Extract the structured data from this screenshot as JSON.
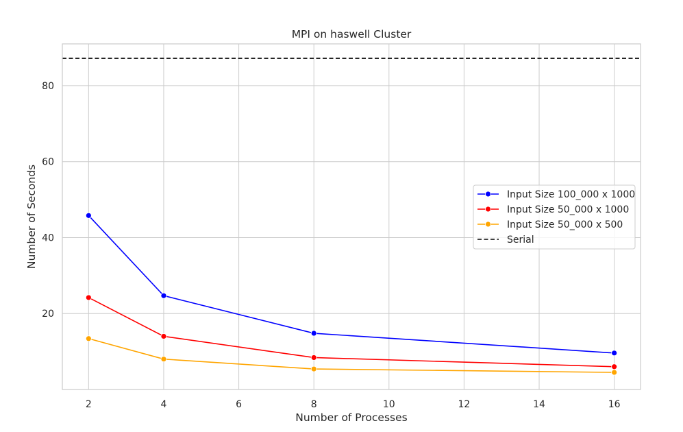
{
  "chart_data": {
    "type": "line",
    "title": "MPI on haswell Cluster",
    "xlabel": "Number of Processes",
    "ylabel": "Number of Seconds",
    "xlim": [
      1.3,
      16.7
    ],
    "ylim": [
      0,
      91
    ],
    "xticks": [
      2,
      4,
      6,
      8,
      10,
      12,
      14,
      16
    ],
    "yticks": [
      20,
      40,
      60,
      80
    ],
    "grid": true,
    "legend_position": "center-right",
    "x": [
      2,
      4,
      8,
      16
    ],
    "series": [
      {
        "name": "Input Size 100_000 x 1000",
        "color": "#0000ff",
        "marker": "circle",
        "values": [
          45.8,
          24.7,
          14.8,
          9.6
        ]
      },
      {
        "name": "Input Size 50_000 x 1000",
        "color": "#ff0000",
        "marker": "circle",
        "values": [
          24.2,
          14.0,
          8.4,
          6.0
        ]
      },
      {
        "name": "Input Size 50_000 x 500",
        "color": "#ffa500",
        "marker": "circle",
        "values": [
          13.4,
          8.0,
          5.4,
          4.5
        ]
      }
    ],
    "reference_lines": [
      {
        "name": "Serial",
        "orientation": "horizontal",
        "value": 87.2,
        "color": "#000000",
        "style": "dashed"
      }
    ]
  }
}
